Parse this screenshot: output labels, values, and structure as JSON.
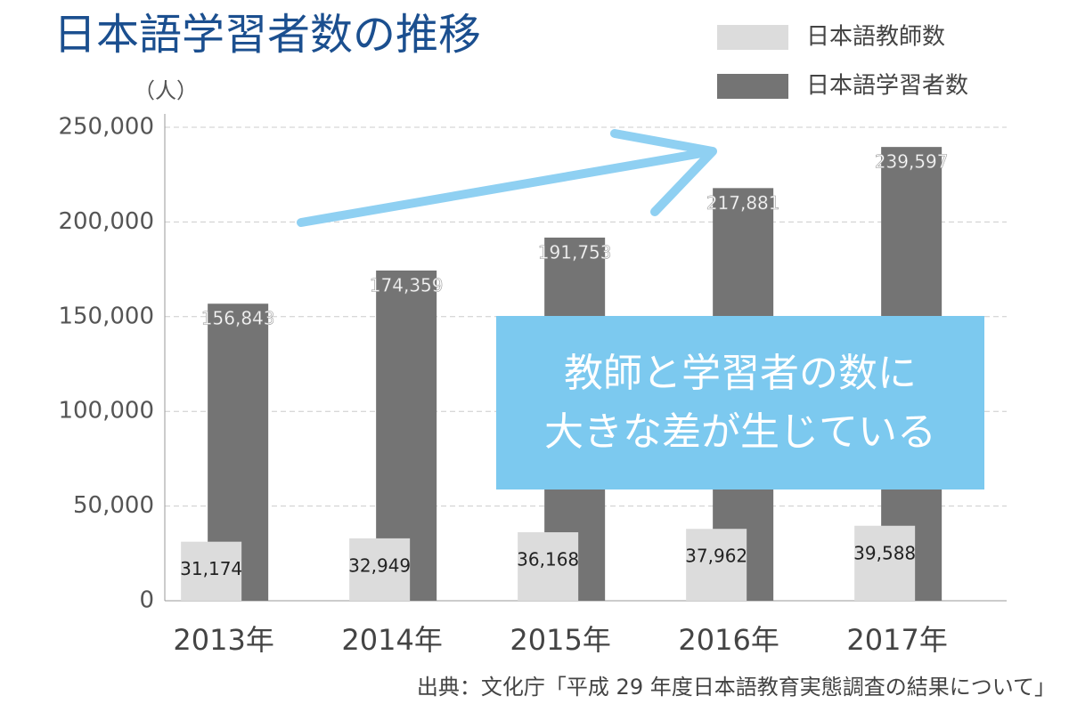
{
  "chart_data": {
    "type": "bar",
    "title": "日本語学習者数の推移",
    "y_axis_label": "（人）",
    "categories": [
      "2013年",
      "2014年",
      "2015年",
      "2016年",
      "2017年"
    ],
    "series": [
      {
        "name": "日本語教師数",
        "color": "#dcdcdc",
        "values": [
          31174,
          32949,
          36168,
          37962,
          39588
        ],
        "value_labels": [
          "31,174",
          "32,949",
          "36,168",
          "37,962",
          "39,588"
        ]
      },
      {
        "name": "日本語学習者数",
        "color": "#747474",
        "values": [
          156843,
          174359,
          191753,
          217881,
          239597
        ],
        "value_labels": [
          "156,843",
          "174,359",
          "191,753",
          "217,881",
          "239,597"
        ]
      }
    ],
    "ylim": [
      0,
      250000
    ],
    "yticks": [
      0,
      {
        "value": 50000,
        "label": "50,000"
      },
      {
        "value": 100000,
        "label": "100,000"
      },
      {
        "value": 150000,
        "label": "150,000"
      },
      {
        "value": 200000,
        "label": "200,000"
      },
      {
        "value": 250000,
        "label": "250,000"
      }
    ],
    "grid": true,
    "annotation": [
      "教師と学習者の数に",
      "大きな差が生じている"
    ],
    "source": "出典：文化庁「平成 29 年度日本語教育実態調査の結果について」"
  }
}
